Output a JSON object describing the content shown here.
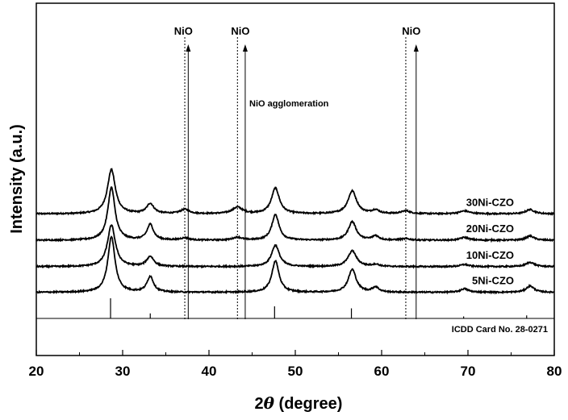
{
  "chart_data": {
    "type": "line",
    "title": "",
    "xlabel_prefix": "2",
    "xlabel_symbol": "θ",
    "xlabel_suffix": " (degree)",
    "ylabel": "Intensity (a.u.)",
    "xlim": [
      20,
      80
    ],
    "x_ticks": [
      "20",
      "30",
      "40",
      "50",
      "60",
      "70",
      "80"
    ],
    "grid": false,
    "legend": "none",
    "series": [
      {
        "name": "30Ni-CZO",
        "baseline": 5.8,
        "peaks": [
          [
            28.7,
            3.1,
            0.55
          ],
          [
            33.2,
            0.7,
            0.5
          ],
          [
            37.2,
            0.3,
            0.6
          ],
          [
            43.3,
            0.45,
            0.7
          ],
          [
            47.7,
            1.8,
            0.55
          ],
          [
            56.6,
            1.6,
            0.6
          ],
          [
            59.3,
            0.25,
            0.5
          ],
          [
            62.8,
            0.2,
            0.6
          ],
          [
            69.6,
            0.2,
            0.7
          ],
          [
            77.2,
            0.3,
            0.6
          ]
        ]
      },
      {
        "name": "20Ni-CZO",
        "baseline": 3.95,
        "peaks": [
          [
            28.7,
            3.7,
            0.5
          ],
          [
            33.2,
            1.1,
            0.45
          ],
          [
            37.2,
            0.15,
            0.6
          ],
          [
            43.3,
            0.2,
            0.6
          ],
          [
            47.7,
            1.8,
            0.5
          ],
          [
            56.6,
            1.3,
            0.55
          ],
          [
            59.3,
            0.3,
            0.45
          ],
          [
            62.8,
            0.1,
            0.6
          ],
          [
            69.6,
            0.2,
            0.6
          ],
          [
            77.2,
            0.3,
            0.55
          ]
        ]
      },
      {
        "name": "10Ni-CZO",
        "baseline": 2.1,
        "peaks": [
          [
            28.7,
            2.9,
            0.55
          ],
          [
            33.2,
            0.7,
            0.5
          ],
          [
            47.7,
            1.5,
            0.55
          ],
          [
            56.6,
            1.1,
            0.6
          ],
          [
            59.3,
            0.15,
            0.5
          ],
          [
            69.6,
            0.15,
            0.6
          ],
          [
            77.2,
            0.3,
            0.6
          ]
        ]
      },
      {
        "name": "5Ni-CZO",
        "baseline": 0.3,
        "peaks": [
          [
            28.7,
            3.9,
            0.5
          ],
          [
            33.2,
            1.1,
            0.45
          ],
          [
            47.7,
            2.2,
            0.5
          ],
          [
            56.6,
            1.6,
            0.55
          ],
          [
            59.3,
            0.35,
            0.45
          ],
          [
            69.6,
            0.25,
            0.55
          ],
          [
            77.2,
            0.45,
            0.55
          ]
        ]
      }
    ],
    "nio_markers": [
      {
        "label": "NiO",
        "dotted_x": 37.2,
        "arrow_x": 37.6
      },
      {
        "label": "NiO",
        "dotted_x": 43.3,
        "arrow_x": 44.2
      },
      {
        "label": "NiO",
        "dotted_x": 62.8,
        "arrow_x": 64.0
      }
    ],
    "annotation": "NiO agglomeration",
    "reference": {
      "label": "ICDD Card No. 28-0271",
      "lines": [
        [
          28.6,
          1.0
        ],
        [
          33.2,
          0.25
        ],
        [
          47.6,
          0.6
        ],
        [
          56.5,
          0.5
        ],
        [
          69.5,
          0.1
        ],
        [
          76.8,
          0.15
        ]
      ]
    }
  }
}
